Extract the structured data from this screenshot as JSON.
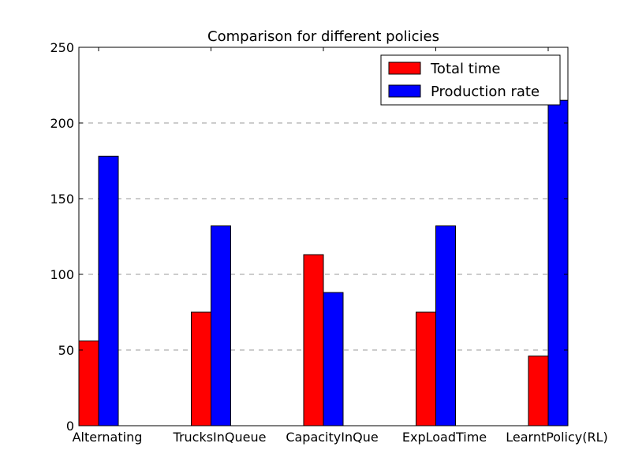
{
  "chart_data": {
    "type": "bar",
    "title": "Comparison for different policies",
    "xlabel": "",
    "ylabel": "",
    "categories": [
      "Alternating",
      "TrucksInQueue",
      "CapacityInQue",
      "ExpLoadTime",
      "LearntPolicy(RL)"
    ],
    "series": [
      {
        "name": "Total time",
        "color": "#ff0000",
        "values": [
          56,
          75,
          113,
          75,
          46
        ]
      },
      {
        "name": "Production rate",
        "color": "#0000ff",
        "values": [
          178,
          132,
          88,
          132,
          215
        ]
      }
    ],
    "ylim": [
      0,
      250
    ],
    "yticks": [
      0,
      50,
      100,
      150,
      200,
      250
    ],
    "ytick_labels": [
      "0",
      "50",
      "100",
      "150",
      "200",
      "250"
    ],
    "grid": "horizontal dashed",
    "legend_position": "top-right"
  }
}
